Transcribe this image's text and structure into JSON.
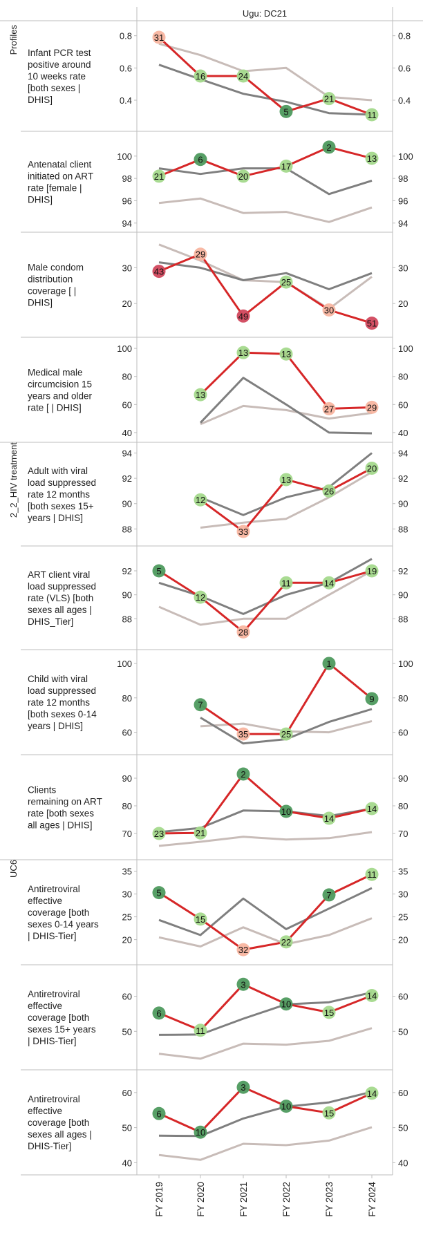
{
  "header": {
    "title": "Ugu: DC21"
  },
  "groups": [
    "Profiles",
    "2_2_HIV treatment",
    "UC6"
  ],
  "x_labels": [
    "FY 2019",
    "FY 2020",
    "FY 2021",
    "FY 2022",
    "FY 2023",
    "FY 2024"
  ],
  "colors": {
    "main_line": "#d62728",
    "compare_dark": "#7f7f7f",
    "compare_light": "#c8bcb8",
    "rank_best": "#4e9a5e",
    "rank_good": "#a4d98c",
    "rank_fair": "#f8b5a0",
    "rank_poor": "#d1485d"
  },
  "chart_data": [
    {
      "type": "line",
      "title": "Infant PCR test positive around 10 weeks rate [both sexes | DHIS]",
      "group": "Profiles",
      "x": [
        "FY 2019",
        "FY 2020",
        "FY 2021",
        "FY 2022",
        "FY 2023",
        "FY 2024"
      ],
      "ylim": [
        0.25,
        0.85
      ],
      "yticks": [
        0.4,
        0.6,
        0.8
      ],
      "series": [
        {
          "role": "district",
          "values": [
            0.79,
            0.55,
            0.55,
            0.33,
            0.41,
            0.31
          ],
          "ranks": [
            31,
            16,
            24,
            5,
            21,
            11
          ]
        },
        {
          "role": "compare_dark",
          "values": [
            0.62,
            0.53,
            0.44,
            0.39,
            0.32,
            0.31
          ]
        },
        {
          "role": "compare_light",
          "values": [
            0.75,
            0.68,
            0.58,
            0.6,
            0.42,
            0.4
          ]
        }
      ]
    },
    {
      "type": "line",
      "title": "Antenatal client initiated on ART rate [female | DHIS]",
      "group": "Profiles",
      "x": [
        "FY 2019",
        "FY 2020",
        "FY 2021",
        "FY 2022",
        "FY 2023",
        "FY 2024"
      ],
      "ylim": [
        93.8,
        101.6
      ],
      "yticks": [
        94,
        96,
        98,
        100
      ],
      "series": [
        {
          "role": "district",
          "values": [
            98.2,
            99.7,
            98.2,
            99.1,
            100.8,
            99.8
          ],
          "ranks": [
            21,
            6,
            20,
            17,
            2,
            13
          ]
        },
        {
          "role": "compare_dark",
          "values": [
            98.9,
            98.4,
            98.9,
            98.9,
            96.6,
            97.8
          ]
        },
        {
          "role": "compare_light",
          "values": [
            95.8,
            96.2,
            94.9,
            95.0,
            94.1,
            95.4
          ]
        }
      ]
    },
    {
      "type": "line",
      "title": "Male condom distribution coverage [ | DHIS]",
      "group": "Profiles",
      "x": [
        "FY 2019",
        "FY 2020",
        "FY 2021",
        "FY 2022",
        "FY 2023",
        "FY 2024"
      ],
      "ylim": [
        12.5,
        38
      ],
      "yticks": [
        20,
        30
      ],
      "series": [
        {
          "role": "district",
          "values": [
            29.0,
            33.8,
            16.5,
            26.0,
            18.2,
            14.5
          ],
          "ranks": [
            43,
            29,
            49,
            25,
            30,
            51
          ]
        },
        {
          "role": "compare_dark",
          "values": [
            31.5,
            30.0,
            26.5,
            28.5,
            24.0,
            28.5
          ]
        },
        {
          "role": "compare_light",
          "values": [
            36.5,
            32.0,
            26.5,
            26.0,
            18.5,
            27.5
          ]
        }
      ]
    },
    {
      "type": "line",
      "title": "Medical male circumcision 15 years and older rate [ | DHIS]",
      "group": "Profiles",
      "x": [
        "FY 2019",
        "FY 2020",
        "FY 2021",
        "FY 2022",
        "FY 2023",
        "FY 2024"
      ],
      "ylim": [
        38,
        103
      ],
      "yticks": [
        40,
        60,
        80,
        100
      ],
      "series": [
        {
          "role": "district",
          "values": [
            null,
            67,
            97,
            96,
            57,
            58
          ],
          "ranks": [
            null,
            13,
            13,
            13,
            27,
            29
          ]
        },
        {
          "role": "compare_dark",
          "values": [
            null,
            47,
            79,
            60,
            40,
            39.5
          ]
        },
        {
          "role": "compare_light",
          "values": [
            null,
            46,
            59,
            56,
            50,
            54
          ]
        }
      ]
    },
    {
      "type": "line",
      "title": "Adult with viral load suppressed rate 12 months [both sexes 15+ years | DHIS]",
      "group": "2_2_HIV treatment",
      "x": [
        "FY 2019",
        "FY 2020",
        "FY 2021",
        "FY 2022",
        "FY 2023",
        "FY 2024"
      ],
      "ylim": [
        87.2,
        94.3
      ],
      "yticks": [
        88,
        90,
        92,
        94
      ],
      "series": [
        {
          "role": "district",
          "values": [
            null,
            90.3,
            87.8,
            91.9,
            91.0,
            92.8
          ],
          "ranks": [
            null,
            12,
            33,
            13,
            26,
            20
          ]
        },
        {
          "role": "compare_dark",
          "values": [
            null,
            90.5,
            89.1,
            90.5,
            91.3,
            94.0
          ]
        },
        {
          "role": "compare_light",
          "values": [
            null,
            88.1,
            88.5,
            88.8,
            90.5,
            92.5
          ]
        }
      ]
    },
    {
      "type": "line",
      "title": "ART client viral load suppressed rate (VLS) [both sexes all ages | DHIS_Tier]",
      "group": "2_2_HIV treatment",
      "x": [
        "FY 2019",
        "FY 2020",
        "FY 2021",
        "FY 2022",
        "FY 2023",
        "FY 2024"
      ],
      "ylim": [
        86,
        93.5
      ],
      "yticks": [
        88,
        90,
        92
      ],
      "series": [
        {
          "role": "district",
          "values": [
            92.0,
            89.8,
            86.9,
            91.0,
            91.0,
            92.0
          ],
          "ranks": [
            5,
            12,
            28,
            11,
            14,
            19
          ]
        },
        {
          "role": "compare_dark",
          "values": [
            91.0,
            89.9,
            88.4,
            90.0,
            91.0,
            93.0
          ]
        },
        {
          "role": "compare_light",
          "values": [
            89.0,
            87.5,
            88.0,
            88.0,
            90.0,
            92.0
          ]
        }
      ]
    },
    {
      "type": "line",
      "title": "Child with viral load suppressed rate 12 months [both sexes 0-14 years | DHIS]",
      "group": "2_2_HIV treatment",
      "x": [
        "FY 2019",
        "FY 2020",
        "FY 2021",
        "FY 2022",
        "FY 2023",
        "FY 2024"
      ],
      "ylim": [
        51,
        104
      ],
      "yticks": [
        60,
        80,
        100
      ],
      "series": [
        {
          "role": "district",
          "values": [
            null,
            76,
            59,
            59,
            100,
            79.5
          ],
          "ranks": [
            null,
            7,
            35,
            25,
            1,
            9
          ]
        },
        {
          "role": "compare_dark",
          "values": [
            null,
            68.5,
            53.5,
            56,
            66,
            73.5
          ]
        },
        {
          "role": "compare_light",
          "values": [
            null,
            63.5,
            65,
            60.5,
            60,
            66.5
          ]
        }
      ]
    },
    {
      "type": "line",
      "title": "Clients remaining on ART rate [both sexes all ages | DHIS]",
      "group": "2_2_HIV treatment",
      "x": [
        "FY 2019",
        "FY 2020",
        "FY 2021",
        "FY 2022",
        "FY 2023",
        "FY 2024"
      ],
      "ylim": [
        63,
        96
      ],
      "yticks": [
        70,
        80,
        90
      ],
      "series": [
        {
          "role": "district",
          "values": [
            70.0,
            70.2,
            91.5,
            78.0,
            75.5,
            79.0
          ],
          "ranks": [
            23,
            21,
            2,
            10,
            14,
            14
          ]
        },
        {
          "role": "compare_dark",
          "values": [
            70.5,
            72.0,
            78.3,
            78.0,
            76.3,
            79.0
          ]
        },
        {
          "role": "compare_light",
          "values": [
            65.5,
            67.0,
            68.8,
            67.8,
            68.3,
            70.5
          ]
        }
      ]
    },
    {
      "type": "line",
      "title": "Antiretroviral effective coverage [both sexes 0-14 years | DHIS-Tier]",
      "group": "UC6",
      "x": [
        "FY 2019",
        "FY 2020",
        "FY 2021",
        "FY 2022",
        "FY 2023",
        "FY 2024"
      ],
      "ylim": [
        16,
        36
      ],
      "yticks": [
        20,
        25,
        30,
        35
      ],
      "series": [
        {
          "role": "district",
          "values": [
            30.3,
            24.5,
            17.8,
            19.5,
            29.8,
            34.3
          ],
          "ranks": [
            5,
            15,
            32,
            22,
            7,
            11
          ]
        },
        {
          "role": "compare_dark",
          "values": [
            24.3,
            21.0,
            29.0,
            22.3,
            26.8,
            31.3
          ]
        },
        {
          "role": "compare_light",
          "values": [
            20.5,
            18.5,
            22.7,
            19.0,
            21.0,
            24.7
          ]
        }
      ]
    },
    {
      "type": "line",
      "title": "Antiretroviral effective coverage [both sexes 15+ years | DHIS-Tier]",
      "group": "UC6",
      "x": [
        "FY 2019",
        "FY 2020",
        "FY 2021",
        "FY 2022",
        "FY 2023",
        "FY 2024"
      ],
      "ylim": [
        41,
        67
      ],
      "yticks": [
        50,
        60
      ],
      "series": [
        {
          "role": "district",
          "values": [
            55.2,
            50.3,
            63.4,
            57.8,
            55.4,
            60.2
          ],
          "ranks": [
            6,
            11,
            3,
            10,
            15,
            14
          ]
        },
        {
          "role": "compare_dark",
          "values": [
            49.0,
            49.1,
            53.6,
            57.7,
            58.3,
            61.1
          ]
        },
        {
          "role": "compare_light",
          "values": [
            43.6,
            42.2,
            46.5,
            46.2,
            47.3,
            50.9
          ]
        }
      ]
    },
    {
      "type": "line",
      "title": "Antiretroviral effective coverage [both sexes all ages | DHIS-Tier]",
      "group": "UC6",
      "x": [
        "FY 2019",
        "FY 2020",
        "FY 2021",
        "FY 2022",
        "FY 2023",
        "FY 2024"
      ],
      "ylim": [
        38.5,
        64.5
      ],
      "yticks": [
        40,
        50,
        60
      ],
      "series": [
        {
          "role": "district",
          "values": [
            54.0,
            48.7,
            61.5,
            56.1,
            54.2,
            59.8
          ],
          "ranks": [
            6,
            10,
            3,
            10,
            15,
            14
          ]
        },
        {
          "role": "compare_dark",
          "values": [
            47.7,
            47.6,
            52.6,
            56.0,
            57.2,
            60.2
          ]
        },
        {
          "role": "compare_light",
          "values": [
            42.2,
            40.8,
            45.4,
            45.0,
            46.3,
            50.1
          ]
        }
      ]
    }
  ]
}
